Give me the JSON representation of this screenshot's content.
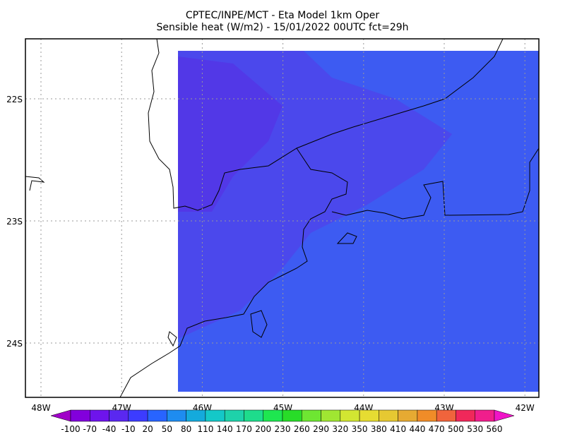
{
  "header": {
    "line1": "CPTEC/INPE/MCT -  Eta Model 1km Oper",
    "line2": "Sensible heat (W/m2) - 15/01/2022 00UTC fct=29h"
  },
  "map": {
    "lon_labels": [
      "48W",
      "47W",
      "46W",
      "45W",
      "44W",
      "43W",
      "42W"
    ],
    "lat_labels": [
      "22S",
      "23S",
      "24S"
    ]
  },
  "colorbar": {
    "labels": [
      -100,
      -70,
      -40,
      -10,
      20,
      50,
      80,
      110,
      140,
      170,
      200,
      230,
      260,
      290,
      320,
      350,
      380,
      410,
      440,
      470,
      500,
      530,
      560
    ],
    "colors": [
      "#a000c8",
      "#8200dc",
      "#6e14ec",
      "#5a28f0",
      "#3c3cff",
      "#2864ff",
      "#1e8cf0",
      "#14aadc",
      "#14c8c8",
      "#1ed2aa",
      "#1edc8c",
      "#1ee650",
      "#28dc28",
      "#6ee632",
      "#a0e632",
      "#d2e632",
      "#e6dc32",
      "#e6c832",
      "#e6aa32",
      "#f08c28",
      "#f0643c",
      "#f0285a",
      "#f01e8c",
      "#f014c8"
    ]
  }
}
